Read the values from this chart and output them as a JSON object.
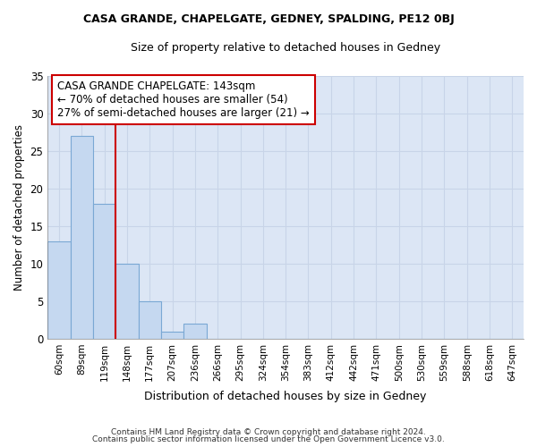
{
  "title": "CASA GRANDE, CHAPELGATE, GEDNEY, SPALDING, PE12 0BJ",
  "subtitle": "Size of property relative to detached houses in Gedney",
  "xlabel": "Distribution of detached houses by size in Gedney",
  "ylabel": "Number of detached properties",
  "bins": [
    "60sqm",
    "89sqm",
    "119sqm",
    "148sqm",
    "177sqm",
    "207sqm",
    "236sqm",
    "266sqm",
    "295sqm",
    "324sqm",
    "354sqm",
    "383sqm",
    "412sqm",
    "442sqm",
    "471sqm",
    "500sqm",
    "530sqm",
    "559sqm",
    "588sqm",
    "618sqm",
    "647sqm"
  ],
  "values": [
    13,
    27,
    18,
    10,
    5,
    1,
    2,
    0,
    0,
    0,
    0,
    0,
    0,
    0,
    0,
    0,
    0,
    0,
    0,
    0,
    0
  ],
  "bar_color": "#c5d8f0",
  "bar_edge_color": "#7aa8d4",
  "grid_color": "#c8d4e8",
  "annotation_text": "CASA GRANDE CHAPELGATE: 143sqm\n← 70% of detached houses are smaller (54)\n27% of semi-detached houses are larger (21) →",
  "annotation_box_color": "#ffffff",
  "annotation_box_edge_color": "#cc0000",
  "property_line_color": "#cc0000",
  "footer_line1": "Contains HM Land Registry data © Crown copyright and database right 2024.",
  "footer_line2": "Contains public sector information licensed under the Open Government Licence v3.0.",
  "ylim": [
    0,
    35
  ],
  "yticks": [
    0,
    5,
    10,
    15,
    20,
    25,
    30,
    35
  ],
  "background_color": "#dce6f5",
  "property_line_index": 3
}
